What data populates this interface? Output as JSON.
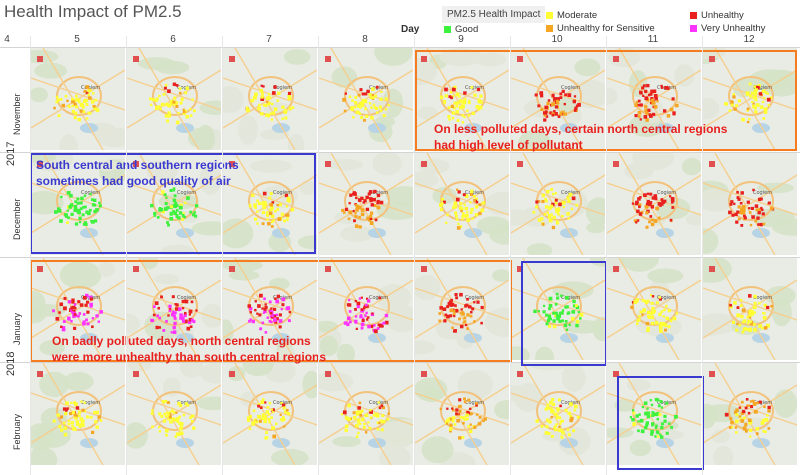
{
  "title": "Health Impact of PM2.5",
  "legend": {
    "title": "PM2.5 Health Impact",
    "items": [
      {
        "label": "Good",
        "color": "#3cf23c"
      },
      {
        "label": "Moderate",
        "color": "#ffff33"
      },
      {
        "label": "Unhealthy for Sensitive",
        "color": "#f5a623"
      },
      {
        "label": "Unhealthy",
        "color": "#e8201e"
      },
      {
        "label": "Very Unhealthy",
        "color": "#ff33ff"
      }
    ]
  },
  "axis": {
    "day_label": "Day",
    "days": [
      "4",
      "5",
      "6",
      "7",
      "8",
      "9",
      "10",
      "11",
      "12"
    ]
  },
  "map_label": "Cogiem",
  "chart_data": {
    "type": "map-grid",
    "title": "Health Impact of PM2.5",
    "x_label": "Day",
    "years": [
      {
        "label": "2017",
        "months": [
          "November",
          "December"
        ]
      },
      {
        "label": "2018",
        "months": [
          "January",
          "February"
        ]
      }
    ],
    "rows": [
      {
        "month": "November",
        "cells": [
          {
            "day": 5,
            "level": "Moderate"
          },
          {
            "day": 6,
            "level": "Moderate"
          },
          {
            "day": 7,
            "level": "Moderate"
          },
          {
            "day": 8,
            "level": "Moderate"
          },
          {
            "day": 9,
            "level": "Moderate"
          },
          {
            "day": 10,
            "level": "Unhealthy"
          },
          {
            "day": 11,
            "level": "Unhealthy"
          },
          {
            "day": 12,
            "level": "Moderate"
          }
        ]
      },
      {
        "month": "December",
        "cells": [
          {
            "day": 5,
            "level": "Good"
          },
          {
            "day": 6,
            "level": "Good"
          },
          {
            "day": 7,
            "level": "Moderate"
          },
          {
            "day": 8,
            "level": "Unhealthy"
          },
          {
            "day": 9,
            "level": "Moderate"
          },
          {
            "day": 10,
            "level": "Moderate"
          },
          {
            "day": 11,
            "level": "Unhealthy"
          },
          {
            "day": 12,
            "level": "Unhealthy"
          }
        ]
      },
      {
        "month": "January",
        "cells": [
          {
            "day": 5,
            "level": "Very Unhealthy"
          },
          {
            "day": 6,
            "level": "Very Unhealthy"
          },
          {
            "day": 7,
            "level": "Very Unhealthy"
          },
          {
            "day": 8,
            "level": "Very Unhealthy"
          },
          {
            "day": 9,
            "level": "Unhealthy"
          },
          {
            "day": 10,
            "level": "Good"
          },
          {
            "day": 11,
            "level": "Moderate"
          },
          {
            "day": 12,
            "level": "Moderate"
          }
        ]
      },
      {
        "month": "February",
        "cells": [
          {
            "day": 5,
            "level": "Moderate"
          },
          {
            "day": 6,
            "level": "Moderate"
          },
          {
            "day": 7,
            "level": "Moderate"
          },
          {
            "day": 8,
            "level": "Moderate"
          },
          {
            "day": 9,
            "level": "Unhealthy for Sensitive"
          },
          {
            "day": 10,
            "level": "Moderate"
          },
          {
            "day": 11,
            "level": "Good"
          },
          {
            "day": 12,
            "level": "Unhealthy for Sensitive"
          }
        ]
      }
    ],
    "annotations": [
      {
        "text": [
          "On less polluted days, certain north central regions",
          "had high level of pollutant"
        ],
        "color": "#e8201e",
        "box_color": "#f57c1f"
      },
      {
        "text": [
          "South central and southern regions",
          "sometimes had good quality of air"
        ],
        "color": "#3a3ad0",
        "box_color": "#3a3ad0"
      },
      {
        "text": [
          "On badly polluted days, north central regions",
          "were more unhealthy than south central regions"
        ],
        "color": "#e8201e",
        "box_color": "#f57c1f"
      }
    ],
    "highlighted_days": [
      {
        "month": "January",
        "day": 10,
        "box_color": "#3a3ad0"
      },
      {
        "month": "February",
        "day": 11,
        "box_color": "#3a3ad0"
      }
    ]
  }
}
